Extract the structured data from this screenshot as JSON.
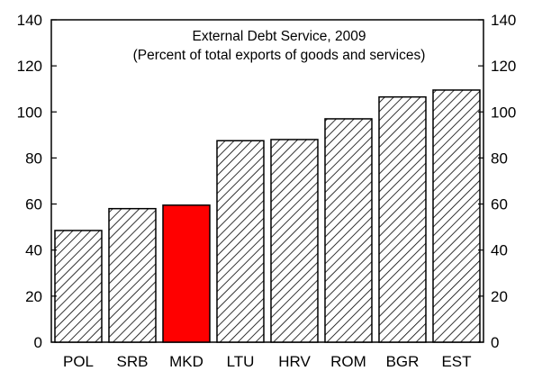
{
  "chart_data": {
    "type": "bar",
    "title": "External Debt Service, 2009",
    "subtitle": "(Percent of total exports of goods and services)",
    "categories": [
      "POL",
      "SRB",
      "MKD",
      "LTU",
      "HRV",
      "ROM",
      "BGR",
      "EST"
    ],
    "values": [
      48.5,
      58,
      59.5,
      87.5,
      88,
      97,
      106.5,
      109.5
    ],
    "highlight": "MKD",
    "ylim": [
      0,
      140
    ],
    "yticks": [
      0,
      20,
      40,
      60,
      80,
      100,
      120,
      140
    ],
    "ytick_labels": [
      "0",
      "20",
      "40",
      "60",
      "80",
      "100",
      "120",
      "140"
    ],
    "xlabel": "",
    "ylabel": "",
    "grid": false,
    "legend": "none",
    "colors": {
      "bar_fill_pattern": "diagonal-hatch",
      "hatch_color": "#000000",
      "highlight_fill": "#ff0000",
      "outline": "#000000"
    }
  }
}
